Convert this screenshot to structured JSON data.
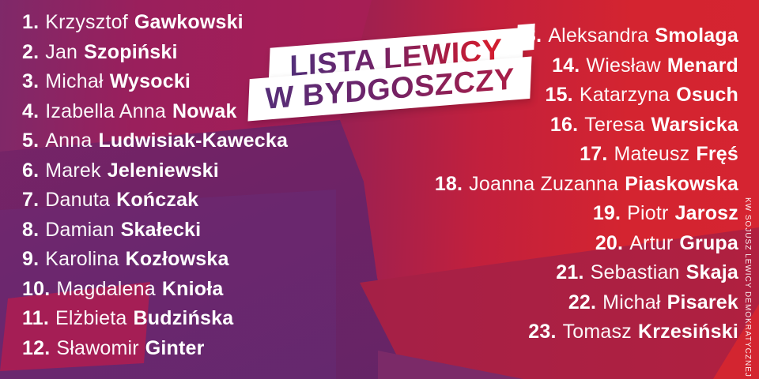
{
  "banner": {
    "line1": "LISTA LEWICY",
    "line2": "W BYDGOSZCZY"
  },
  "left_column": [
    {
      "number": "1.",
      "given": "Krzysztof",
      "surname": "Gawkowski"
    },
    {
      "number": "2.",
      "given": "Jan",
      "surname": "Szopiński"
    },
    {
      "number": "3.",
      "given": "Michał",
      "surname": "Wysocki"
    },
    {
      "number": "4.",
      "given": "Izabella Anna",
      "surname": "Nowak"
    },
    {
      "number": "5.",
      "given": "Anna",
      "surname": "Ludwisiak-Kawecka"
    },
    {
      "number": "6.",
      "given": "Marek",
      "surname": "Jeleniewski"
    },
    {
      "number": "7.",
      "given": "Danuta",
      "surname": "Kończak"
    },
    {
      "number": "8.",
      "given": "Damian",
      "surname": "Skałecki"
    },
    {
      "number": "9.",
      "given": "Karolina",
      "surname": "Kozłowska"
    },
    {
      "number": "10.",
      "given": "Magdalena",
      "surname": "Knioła"
    },
    {
      "number": "11.",
      "given": "Elżbieta",
      "surname": "Budzińska"
    },
    {
      "number": "12.",
      "given": "Sławomir",
      "surname": "Ginter"
    }
  ],
  "right_column": [
    {
      "number": "13.",
      "given": "Aleksandra",
      "surname": "Smolaga"
    },
    {
      "number": "14.",
      "given": "Wiesław",
      "surname": "Menard"
    },
    {
      "number": "15.",
      "given": "Katarzyna",
      "surname": "Osuch"
    },
    {
      "number": "16.",
      "given": "Teresa",
      "surname": "Warsicka"
    },
    {
      "number": "17.",
      "given": "Mateusz",
      "surname": "Fręś"
    },
    {
      "number": "18.",
      "given": "Joanna Zuzanna",
      "surname": "Piaskowska"
    },
    {
      "number": "19.",
      "given": "Piotr",
      "surname": "Jarosz"
    },
    {
      "number": "20.",
      "given": "Artur",
      "surname": "Grupa"
    },
    {
      "number": "21.",
      "given": "Sebastian",
      "surname": "Skaja"
    },
    {
      "number": "22.",
      "given": "Michał",
      "surname": "Pisarek"
    },
    {
      "number": "23.",
      "given": "Tomasz",
      "surname": "Krzesiński"
    }
  ],
  "credit": "KW SOJUSZ LEWICY DEMOKRATYCZNEJ",
  "colors": {
    "purple": "#6F2366",
    "crimson": "#A51E55",
    "red": "#D52431",
    "banner_background": "#FFFFFF",
    "banner_text_start": "#53307A",
    "banner_text_end": "#D11D30",
    "list_text": "#FFFFFF"
  }
}
